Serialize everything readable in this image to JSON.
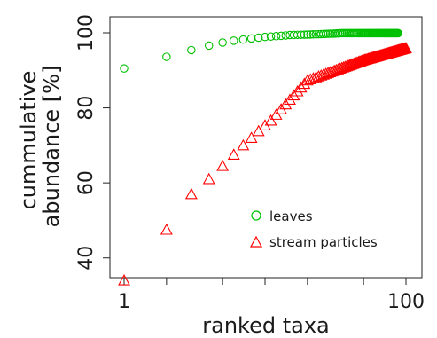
{
  "chart_data": {
    "type": "scatter",
    "xlabel": "ranked taxa",
    "ylabel_lines": [
      "cummulative",
      "abundance [%]"
    ],
    "xscale": "log",
    "xlim": [
      1,
      100
    ],
    "ylim": [
      30,
      100
    ],
    "x_ticks": [
      1,
      2,
      5,
      10,
      20,
      50,
      100
    ],
    "x_tick_labels": [
      "1",
      "",
      "",
      "",
      "",
      "",
      "100"
    ],
    "y_ticks": [
      40,
      60,
      80,
      100
    ],
    "y_tick_labels": [
      "40",
      "60",
      "80",
      "100"
    ],
    "legend_position": "bottom-right",
    "series": [
      {
        "name": "leaves",
        "marker": "circle",
        "color": "#00c000",
        "n_points": 88,
        "x_start": 1,
        "y_values_first": [
          90.5,
          93.6,
          95.4,
          96.6,
          97.4,
          97.9,
          98.2,
          98.5,
          98.7,
          98.9,
          99.0,
          99.1,
          99.2,
          99.3,
          99.4
        ],
        "y_plateau": 99.9
      },
      {
        "name": "stream particles",
        "marker": "triangle",
        "color": "#ff0000",
        "n_points": 100,
        "x_start": 1,
        "y_values_first": [
          34,
          47.5,
          57,
          61,
          64.5,
          67.5,
          70,
          72,
          73.8,
          75.3,
          76.6
        ],
        "y_at_x": [
          [
            20,
            87.3
          ],
          [
            50,
            92.7
          ],
          [
            100,
            95.9
          ]
        ]
      }
    ]
  }
}
